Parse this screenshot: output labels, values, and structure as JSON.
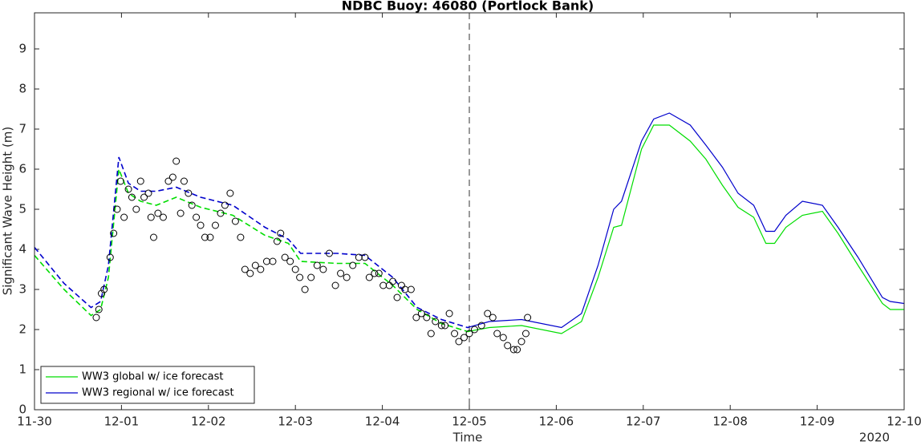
{
  "chart_data": {
    "type": "line",
    "title": "NDBC Buoy: 46080 (Portlock Bank)",
    "x_label": "Time",
    "y_label": "Significant Wave Height (m)",
    "x_year_label": "2020",
    "xlim": [
      0,
      10
    ],
    "xticks": [
      {
        "value": 0,
        "label": "11-30"
      },
      {
        "value": 1,
        "label": "12-01"
      },
      {
        "value": 2,
        "label": "12-02"
      },
      {
        "value": 3,
        "label": "12-03"
      },
      {
        "value": 4,
        "label": "12-04"
      },
      {
        "value": 5,
        "label": "12-05"
      },
      {
        "value": 6,
        "label": "12-06"
      },
      {
        "value": 7,
        "label": "12-07"
      },
      {
        "value": 8,
        "label": "12-08"
      },
      {
        "value": 9,
        "label": "12-09"
      },
      {
        "value": 10,
        "label": "12-10"
      }
    ],
    "ylim": [
      0,
      9.9
    ],
    "yticks": [
      0,
      1,
      2,
      3,
      4,
      5,
      6,
      7,
      8,
      9
    ],
    "forecast_start": 5,
    "legend_position": "lower left",
    "x": [
      0,
      0.34,
      0.65,
      0.76,
      0.85,
      0.97,
      1.08,
      1.22,
      1.4,
      1.63,
      1.91,
      2.28,
      2.65,
      2.92,
      3.06,
      3.48,
      3.8,
      4.12,
      4.4,
      4.68,
      4.98,
      5.23,
      5.6,
      6.06,
      6.29,
      6.48,
      6.66,
      6.75,
      6.98,
      7.12,
      7.3,
      7.54,
      7.72,
      7.91,
      8.09,
      8.27,
      8.41,
      8.51,
      8.64,
      8.83,
      9.06,
      9.24,
      9.47,
      9.75,
      9.84,
      10
    ],
    "series": [
      {
        "name": "WW3 global w/ ice forecast",
        "color": "#00dd00",
        "values": [
          3.85,
          3.0,
          2.35,
          2.5,
          3.3,
          6.0,
          5.4,
          5.2,
          5.1,
          5.3,
          5.05,
          4.85,
          4.35,
          4.15,
          3.7,
          3.65,
          3.65,
          3.1,
          2.5,
          2.15,
          1.95,
          2.05,
          2.1,
          1.9,
          2.2,
          3.3,
          4.55,
          4.6,
          6.5,
          7.1,
          7.1,
          6.7,
          6.25,
          5.6,
          5.05,
          4.8,
          4.15,
          4.15,
          4.55,
          4.85,
          4.95,
          4.4,
          3.6,
          2.65,
          2.5,
          2.5
        ]
      },
      {
        "name": "WW3 regional w/ ice forecast",
        "color": "#0000cc",
        "values": [
          4.05,
          3.15,
          2.55,
          2.7,
          3.6,
          6.3,
          5.65,
          5.45,
          5.45,
          5.55,
          5.3,
          5.1,
          4.55,
          4.25,
          3.9,
          3.9,
          3.85,
          3.3,
          2.55,
          2.25,
          2.05,
          2.2,
          2.25,
          2.05,
          2.4,
          3.6,
          5.0,
          5.2,
          6.7,
          7.25,
          7.4,
          7.1,
          6.6,
          6.05,
          5.4,
          5.1,
          4.45,
          4.45,
          4.85,
          5.2,
          5.1,
          4.55,
          3.8,
          2.8,
          2.7,
          2.65
        ]
      }
    ],
    "observations": {
      "color": "#000000",
      "x": [
        0.71,
        0.74,
        0.77,
        0.8,
        0.87,
        0.91,
        0.95,
        0.99,
        1.03,
        1.08,
        1.12,
        1.17,
        1.22,
        1.26,
        1.31,
        1.34,
        1.37,
        1.42,
        1.48,
        1.54,
        1.59,
        1.63,
        1.68,
        1.72,
        1.77,
        1.81,
        1.86,
        1.91,
        1.96,
        2.02,
        2.08,
        2.14,
        2.19,
        2.25,
        2.31,
        2.37,
        2.42,
        2.48,
        2.54,
        2.6,
        2.67,
        2.74,
        2.79,
        2.83,
        2.88,
        2.94,
        3.0,
        3.05,
        3.11,
        3.18,
        3.25,
        3.32,
        3.39,
        3.46,
        3.52,
        3.59,
        3.66,
        3.73,
        3.8,
        3.85,
        3.91,
        3.96,
        4.01,
        4.08,
        4.12,
        4.17,
        4.22,
        4.26,
        4.33,
        4.39,
        4.45,
        4.51,
        4.56,
        4.61,
        4.68,
        4.72,
        4.77,
        4.83,
        4.88,
        4.94,
        5.0,
        5.06,
        5.14,
        5.21,
        5.27,
        5.32,
        5.39,
        5.44,
        5.51,
        5.55,
        5.6,
        5.65,
        5.67
      ],
      "values": [
        2.3,
        2.5,
        2.9,
        3.0,
        3.8,
        4.4,
        5.0,
        5.7,
        4.8,
        5.5,
        5.3,
        5.0,
        5.7,
        5.3,
        5.4,
        4.8,
        4.3,
        4.9,
        4.8,
        5.7,
        5.8,
        6.2,
        4.9,
        5.7,
        5.4,
        5.1,
        4.8,
        4.6,
        4.3,
        4.3,
        4.6,
        4.9,
        5.1,
        5.4,
        4.7,
        4.3,
        3.5,
        3.4,
        3.6,
        3.5,
        3.7,
        3.7,
        4.2,
        4.4,
        3.8,
        3.7,
        3.5,
        3.3,
        3.0,
        3.3,
        3.6,
        3.5,
        3.9,
        3.1,
        3.4,
        3.3,
        3.6,
        3.8,
        3.8,
        3.3,
        3.4,
        3.4,
        3.1,
        3.1,
        3.2,
        2.8,
        3.1,
        3.0,
        3.0,
        2.3,
        2.4,
        2.3,
        1.9,
        2.2,
        2.1,
        2.1,
        2.4,
        1.9,
        1.7,
        1.8,
        1.9,
        2.0,
        2.1,
        2.4,
        2.3,
        1.9,
        1.8,
        1.6,
        1.5,
        1.5,
        1.7,
        1.9,
        2.3
      ]
    }
  }
}
